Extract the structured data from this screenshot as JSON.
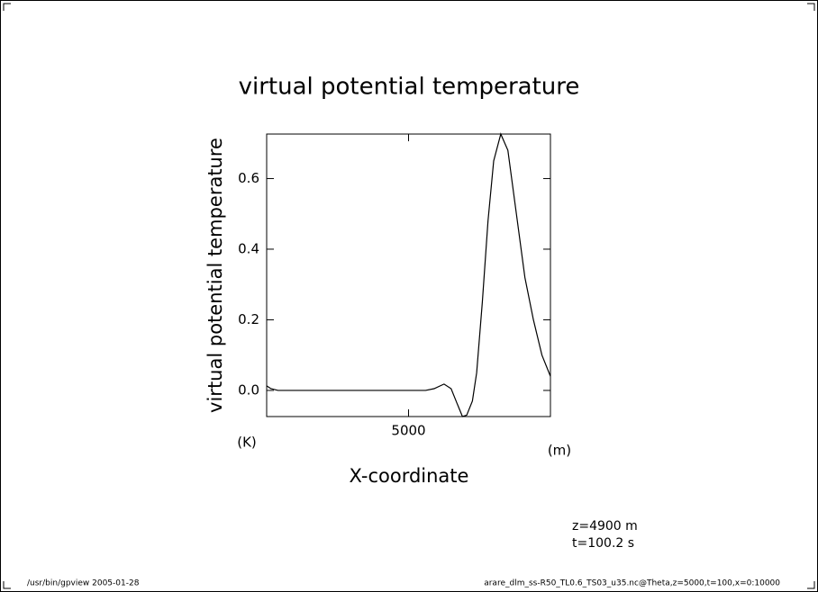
{
  "chart_data": {
    "type": "line",
    "title": "virtual potential temperature",
    "y_label": "virtual potential temperature",
    "y_unit": "(K)",
    "x_label": "X-coordinate",
    "x_unit": "(m)",
    "annotations": [
      "z=4900 m",
      "t=100.2 s"
    ],
    "footer_left": "/usr/bin/gpview  2005-01-28",
    "footer_right": "arare_dlm_ss-R50_TL0.6_TS03_u35.nc@Theta,z=5000,t=100,x=0:10000",
    "x": [
      0,
      150,
      400,
      5600,
      5900,
      6250,
      6500,
      6700,
      6900,
      7050,
      7250,
      7400,
      7600,
      7800,
      8000,
      8250,
      8500,
      8800,
      9100,
      9400,
      9700,
      10000
    ],
    "series": [
      {
        "color": "#000000",
        "values": [
          0.013,
          0.005,
          0,
          0,
          0.005,
          0.018,
          0.005,
          -0.035,
          -0.074,
          -0.07,
          -0.03,
          0.05,
          0.25,
          0.48,
          0.65,
          0.726,
          0.68,
          0.5,
          0.32,
          0.2,
          0.1,
          0.04
        ]
      }
    ],
    "xlim": [
      0,
      10000
    ],
    "ylim": [
      -0.074,
      0.726
    ],
    "xticks": [
      5000
    ],
    "yticks": [
      {
        "value": 0,
        "label": "0.0"
      },
      0.2,
      0.4,
      0.6
    ]
  }
}
